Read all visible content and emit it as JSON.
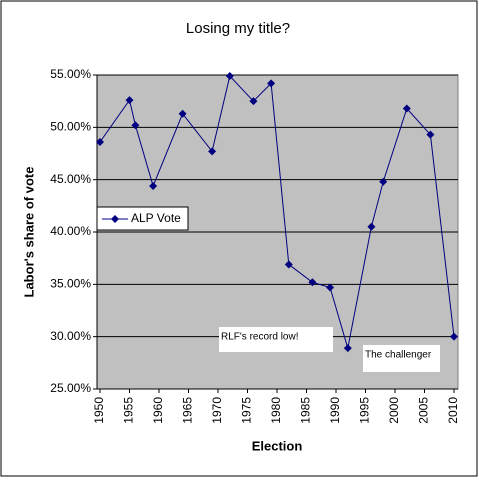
{
  "chart_data": {
    "type": "line",
    "title": "Losing my title?",
    "x_label": "Election",
    "y_label": "Labor's share of vote",
    "x": [
      1950,
      1955,
      1956,
      1959,
      1964,
      1969,
      1972,
      1976,
      1979,
      1982,
      1986,
      1989,
      1992,
      1996,
      1998,
      2002,
      2006,
      2010
    ],
    "series": [
      {
        "name": "ALP Vote",
        "color": "#000080",
        "values": [
          48.6,
          52.6,
          50.2,
          44.4,
          51.3,
          47.7,
          54.9,
          52.5,
          54.2,
          36.9,
          35.2,
          34.7,
          28.9,
          40.5,
          44.8,
          51.8,
          49.3,
          30.0
        ]
      }
    ],
    "xlim": [
      1950,
      2010
    ],
    "xticks": [
      1950,
      1955,
      1960,
      1965,
      1970,
      1975,
      1980,
      1985,
      1990,
      1995,
      2000,
      2005,
      2010
    ],
    "ylim": [
      25,
      55
    ],
    "yticks": [
      {
        "value": 25,
        "label": "25.00%"
      },
      {
        "value": 30,
        "label": "30.00%"
      },
      {
        "value": 35,
        "label": "35.00%"
      },
      {
        "value": 40,
        "label": "40.00%"
      },
      {
        "value": 45,
        "label": "45.00%"
      },
      {
        "value": 50,
        "label": "50.00%"
      },
      {
        "value": 55,
        "label": "55.00%"
      }
    ],
    "grid": true,
    "legend": "left",
    "annotations": [
      "RLF's record low!",
      "The challenger"
    ]
  }
}
